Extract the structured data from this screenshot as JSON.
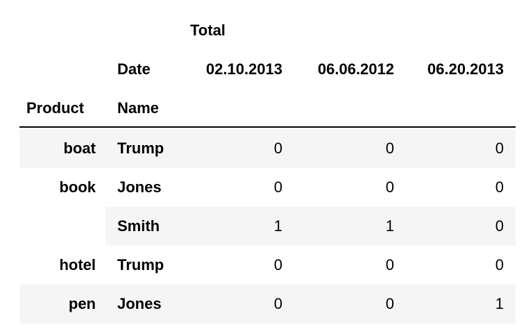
{
  "table": {
    "column_level0": "Total",
    "column_index_name": "Date",
    "columns": [
      "02.10.2013",
      "06.06.2012",
      "06.20.2013"
    ],
    "row_index_names": [
      "Product",
      "Name"
    ],
    "rows": [
      {
        "product": "boat",
        "name": "Trump",
        "values": [
          "0",
          "0",
          "0"
        ]
      },
      {
        "product": "book",
        "name": "Jones",
        "values": [
          "0",
          "0",
          "0"
        ]
      },
      {
        "product": "",
        "name": "Smith",
        "values": [
          "1",
          "1",
          "0"
        ]
      },
      {
        "product": "hotel",
        "name": "Trump",
        "values": [
          "0",
          "0",
          "0"
        ]
      },
      {
        "product": "pen",
        "name": "Jones",
        "values": [
          "0",
          "0",
          "1"
        ]
      }
    ]
  },
  "colors": {
    "stripe": "#f5f5f5",
    "text": "#000000",
    "rule": "#000000"
  }
}
